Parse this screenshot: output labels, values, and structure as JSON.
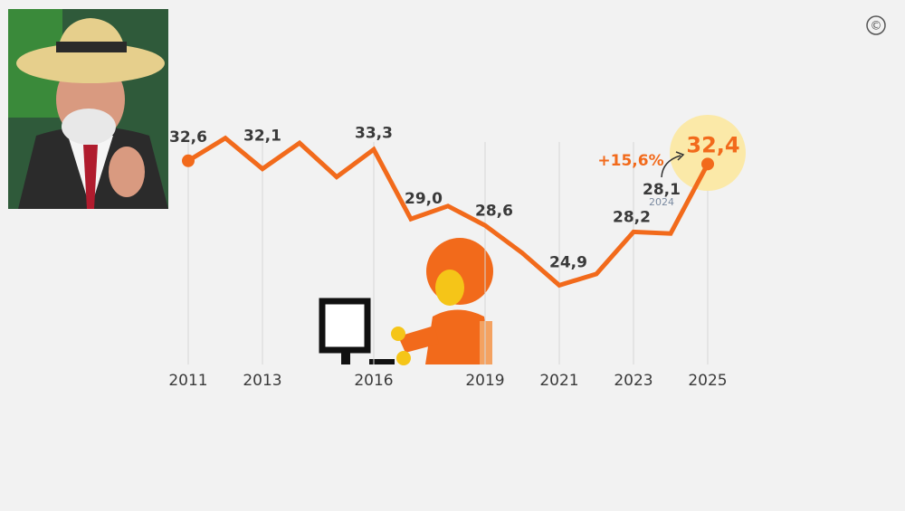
{
  "chart_data": {
    "type": "line",
    "x": [
      2011,
      2012,
      2013,
      2014,
      2015,
      2016,
      2017,
      2018,
      2019,
      2020,
      2021,
      2022,
      2023,
      2024,
      2025
    ],
    "series": [
      {
        "color": "#f26a1b",
        "values": [
          32.6,
          34.0,
          32.1,
          33.7,
          31.6,
          33.3,
          29.0,
          29.8,
          28.6,
          26.9,
          24.9,
          25.6,
          28.2,
          28.1,
          32.4
        ],
        "value_labels": [
          "32,6",
          null,
          "32,1",
          null,
          null,
          "33,3",
          "29,0",
          null,
          "28,6",
          null,
          "24,9",
          null,
          "28,2",
          "28,1",
          "32,4"
        ]
      }
    ],
    "xlim": [
      2011,
      2025
    ],
    "xticks": [
      2011,
      2013,
      2016,
      2019,
      2021,
      2023,
      2025
    ],
    "ylim": [
      20,
      36
    ],
    "grid": true,
    "annotations": {
      "change": "+15,6%",
      "copyright": "©"
    }
  }
}
